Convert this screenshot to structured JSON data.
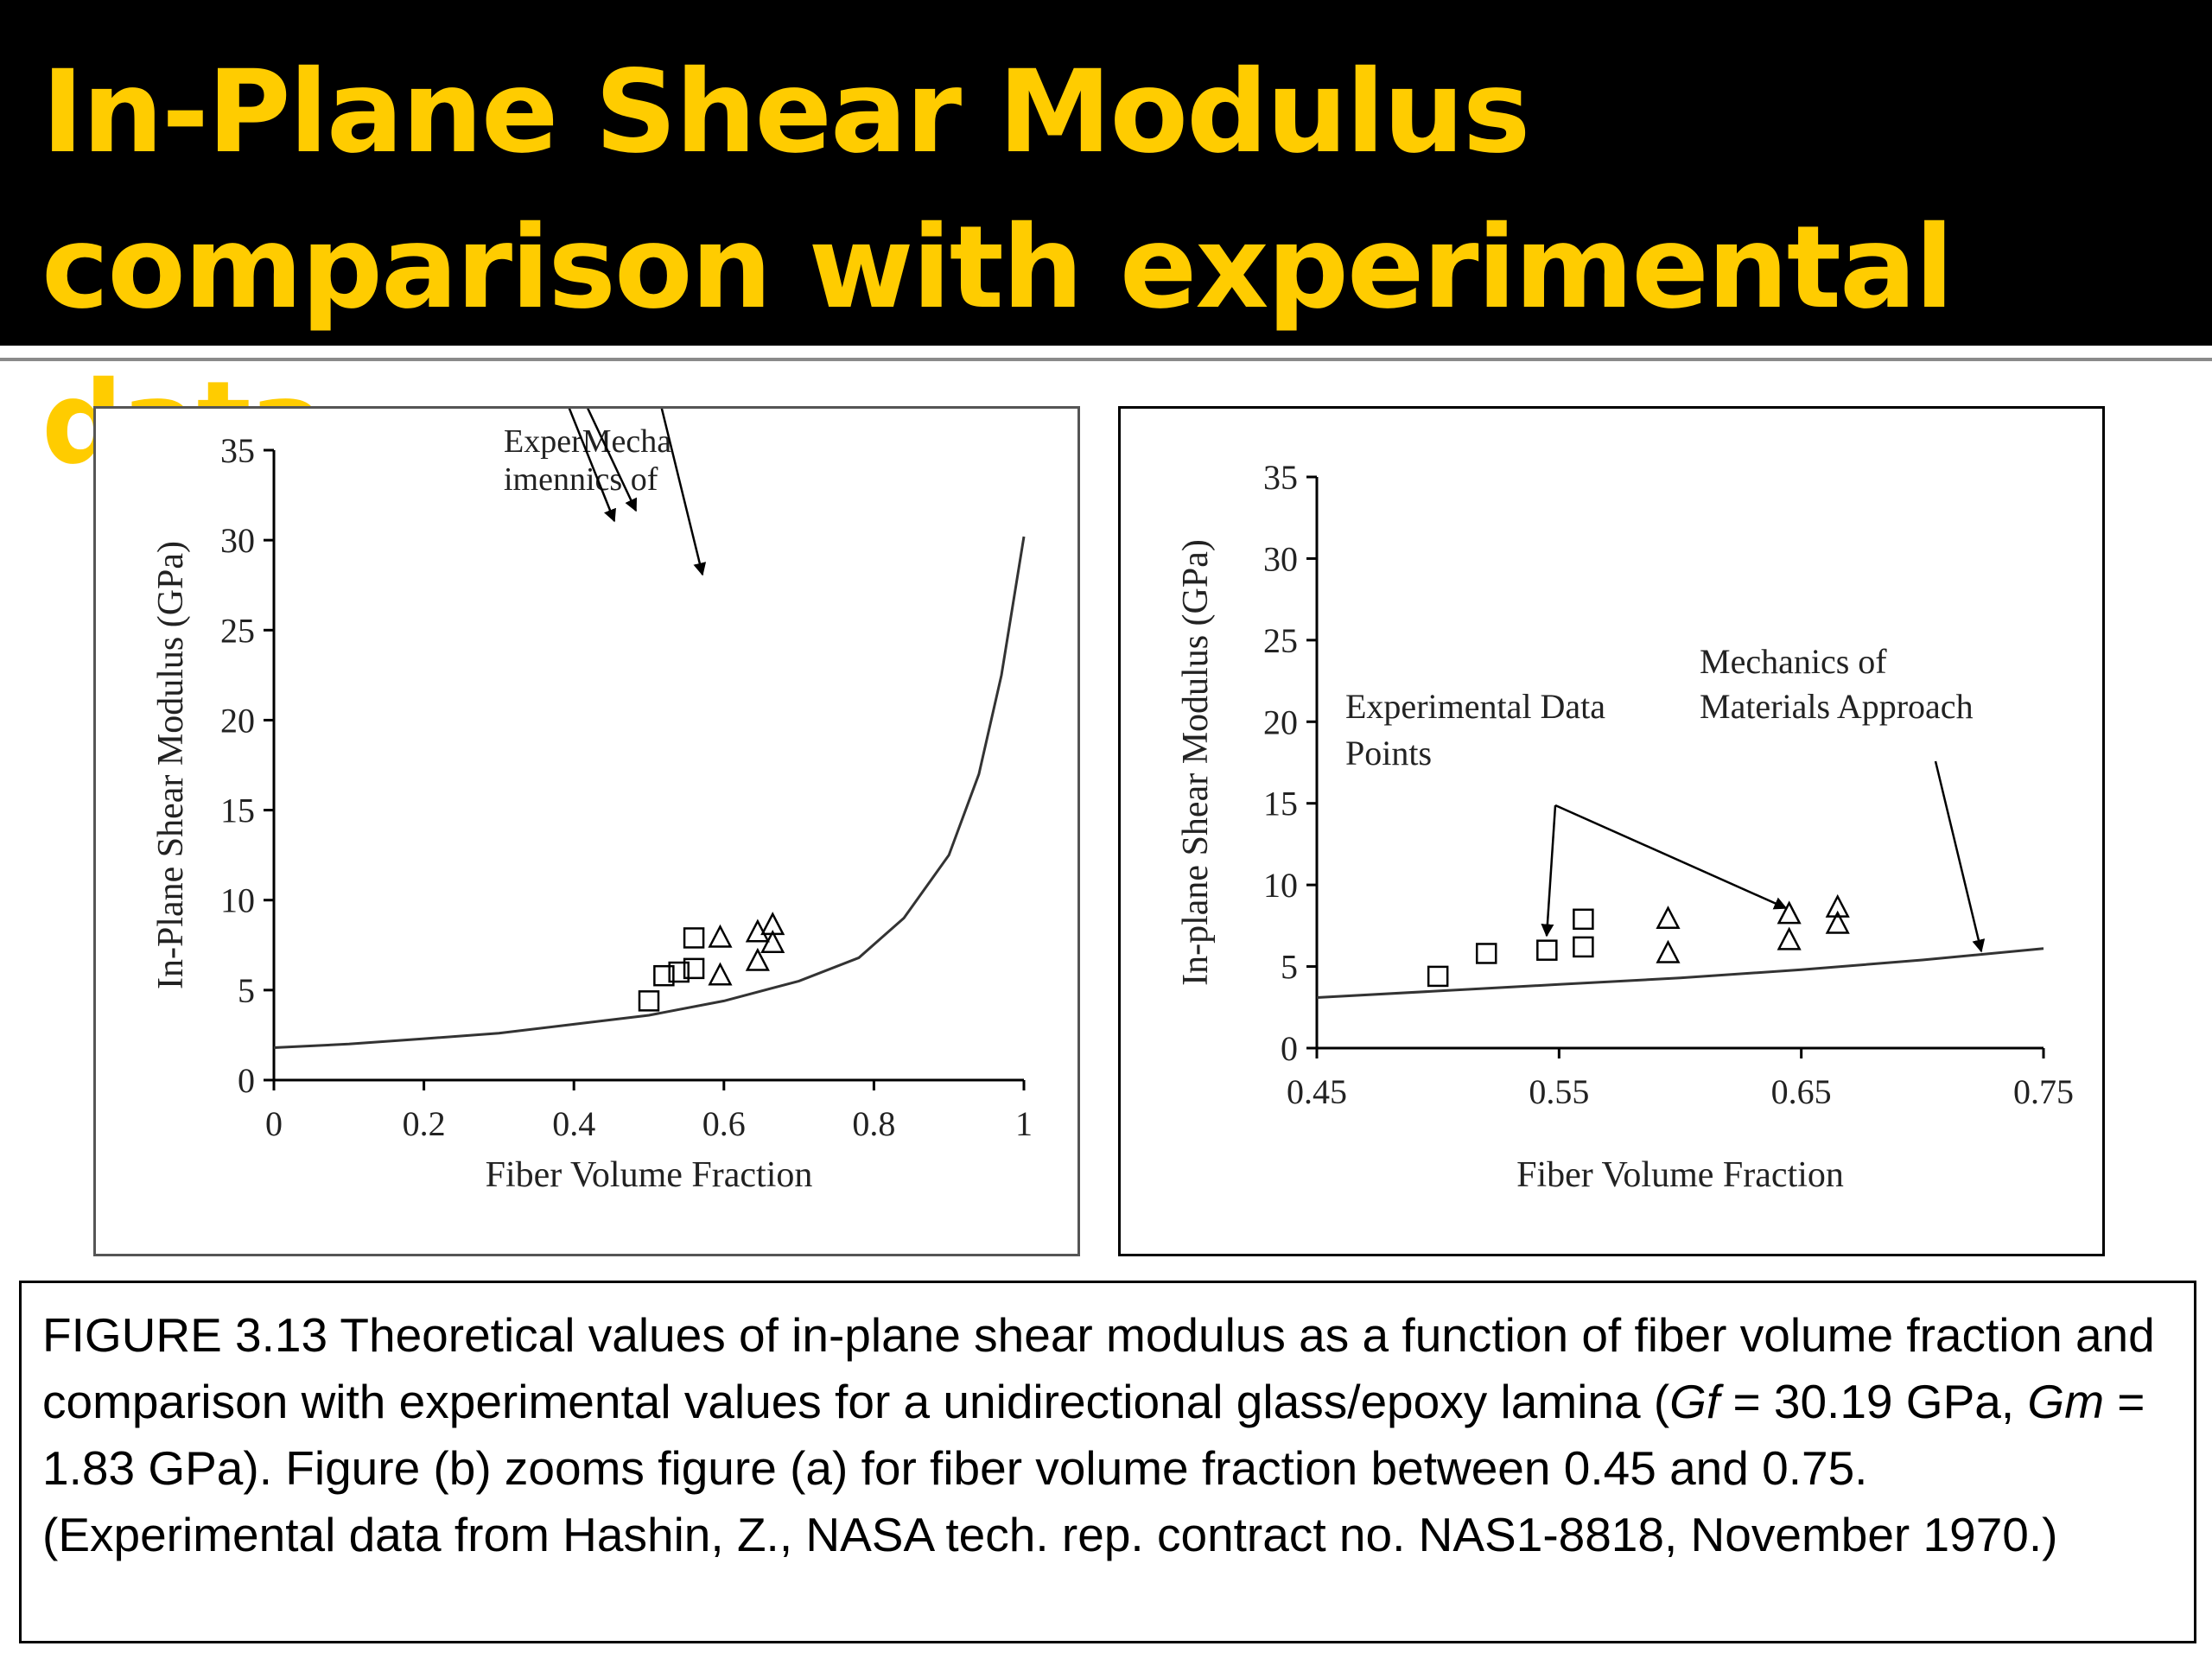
{
  "slide": {
    "title": "In-Plane Shear Modulus comparison with experimental data"
  },
  "caption": {
    "part1": "FIGURE 3.13 Theoretical values of in-plane shear modulus as a function of fiber volume fraction and comparison with experimental values for a unidirectional glass/epoxy lamina (",
    "gf_symbol": "Gf",
    "part2": " = 30.19 GPa, ",
    "gm_symbol": "Gm",
    "part3": " = 1.83 GPa). Figure (b) zooms figure (a) for fiber volume fraction between 0.45 and 0.75. (Experimental data from Hashin, Z., NASA tech. rep. contract no. NAS1-8818, November 1970.)"
  },
  "chart_data": [
    {
      "type": "scatter",
      "xlabel": "Fiber Volume Fraction",
      "ylabel": "In-Plane Shear Modulus (GPa)",
      "xlim": [
        0,
        1
      ],
      "ylim": [
        0,
        35
      ],
      "xticks": [
        "0",
        "0.2",
        "0.4",
        "0.6",
        "0.8",
        "1"
      ],
      "yticks": [
        "0",
        "5",
        "10",
        "15",
        "20",
        "25",
        "30",
        "35"
      ],
      "annotation_text": [
        "ExperMecha",
        "imennics of"
      ],
      "series": [
        {
          "marker": "line",
          "x": [
            0,
            0.1,
            0.2,
            0.3,
            0.4,
            0.5,
            0.6,
            0.7,
            0.78,
            0.84,
            0.9,
            0.94,
            0.97,
            1.0
          ],
          "y": [
            1.8,
            2.0,
            2.3,
            2.6,
            3.1,
            3.6,
            4.4,
            5.5,
            6.8,
            9.0,
            12.5,
            17.0,
            22.5,
            30.2
          ]
        },
        {
          "marker": "square",
          "x": [
            0.5,
            0.52,
            0.54,
            0.56,
            0.56
          ],
          "y": [
            4.4,
            5.8,
            6.0,
            6.2,
            7.9
          ]
        },
        {
          "marker": "triangle",
          "x": [
            0.595,
            0.595,
            0.645,
            0.645,
            0.665,
            0.665
          ],
          "y": [
            5.8,
            7.9,
            6.6,
            8.2,
            7.6,
            8.6
          ]
        }
      ]
    },
    {
      "type": "scatter",
      "xlabel": "Fiber Volume Fraction",
      "ylabel": "In-plane Shear Modulus (GPa)",
      "xlim": [
        0.45,
        0.75
      ],
      "ylim": [
        0,
        35
      ],
      "xticks": [
        "0.45",
        "0.55",
        "0.65",
        "0.75"
      ],
      "yticks": [
        "0",
        "5",
        "10",
        "15",
        "20",
        "25",
        "30",
        "35"
      ],
      "annotations": [
        {
          "text": [
            "Experimental Data",
            "Points"
          ]
        },
        {
          "text": [
            "Mechanics of",
            "Materials Approach"
          ]
        }
      ],
      "series": [
        {
          "marker": "line",
          "x": [
            0.45,
            0.5,
            0.55,
            0.6,
            0.65,
            0.7,
            0.75
          ],
          "y": [
            3.1,
            3.5,
            3.9,
            4.3,
            4.8,
            5.4,
            6.1
          ]
        },
        {
          "marker": "square",
          "x": [
            0.5,
            0.52,
            0.545,
            0.56,
            0.56
          ],
          "y": [
            4.4,
            5.8,
            6.0,
            6.2,
            7.9
          ]
        },
        {
          "marker": "triangle",
          "x": [
            0.595,
            0.595,
            0.645,
            0.645,
            0.665,
            0.665
          ],
          "y": [
            5.8,
            7.9,
            6.6,
            8.2,
            7.6,
            8.6
          ]
        }
      ]
    }
  ]
}
